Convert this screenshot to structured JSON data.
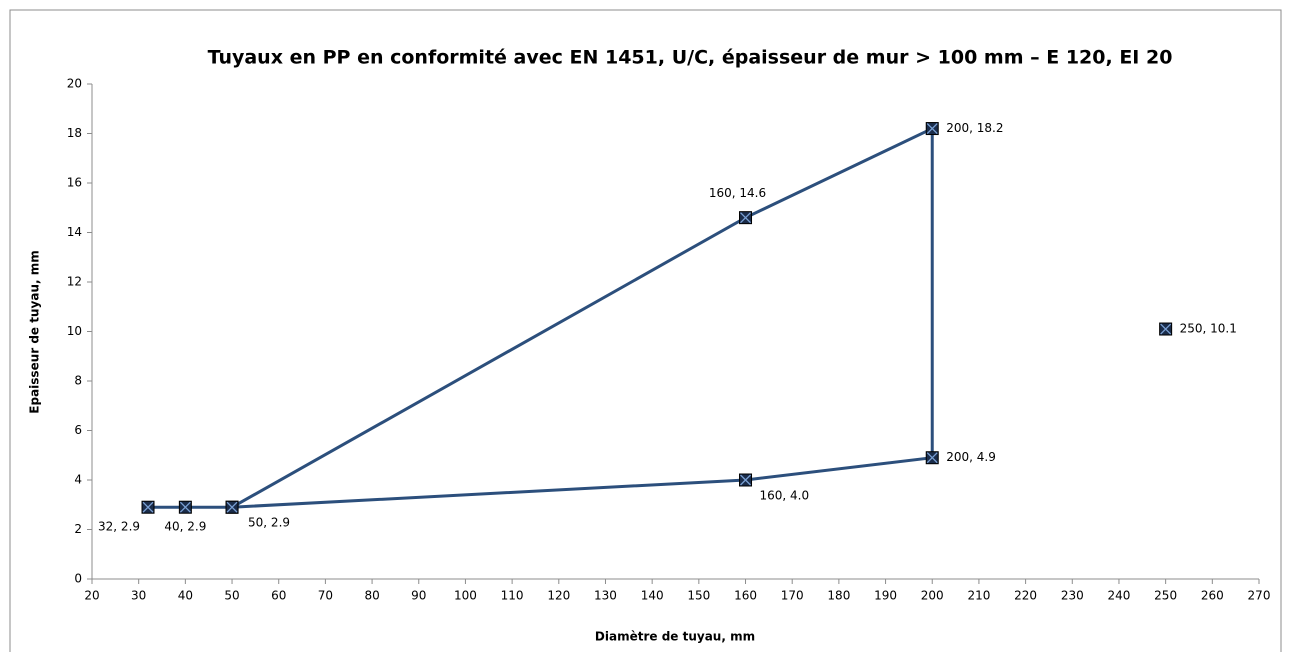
{
  "chart_data": {
    "type": "scatter",
    "title": "Tuyaux en PP en conformité avec EN 1451, U/C, épaisseur de mur > 100 mm – E 120, EI 20",
    "xlabel": "Diamètre de tuyau, mm",
    "ylabel": "Epaisseur de tuyau, mm",
    "xlim": [
      20,
      270
    ],
    "xticks": [
      20,
      30,
      40,
      50,
      60,
      70,
      80,
      90,
      100,
      110,
      120,
      130,
      140,
      150,
      160,
      170,
      180,
      190,
      200,
      210,
      220,
      230,
      240,
      250,
      260,
      270
    ],
    "ylim": [
      0,
      20
    ],
    "yticks": [
      0,
      2,
      4,
      6,
      8,
      10,
      12,
      14,
      16,
      18,
      20
    ],
    "grid": false,
    "series": [
      {
        "color": "#2c4f7c",
        "line": true,
        "x": [
          32,
          40,
          50,
          160,
          200,
          200,
          160,
          50
        ],
        "values": [
          2.9,
          2.9,
          2.9,
          14.6,
          18.2,
          4.9,
          4.0,
          2.9
        ],
        "value_labels": [
          "32, 2.9",
          "40, 2.9",
          "50, 2.9",
          "160, 14.6",
          "200, 18.2",
          "200, 4.9",
          "160, 4.0",
          null
        ]
      },
      {
        "color": "#2c4f7c",
        "line": false,
        "x": [
          250
        ],
        "values": [
          10.1
        ],
        "value_labels": [
          "250, 10.1"
        ]
      }
    ]
  }
}
